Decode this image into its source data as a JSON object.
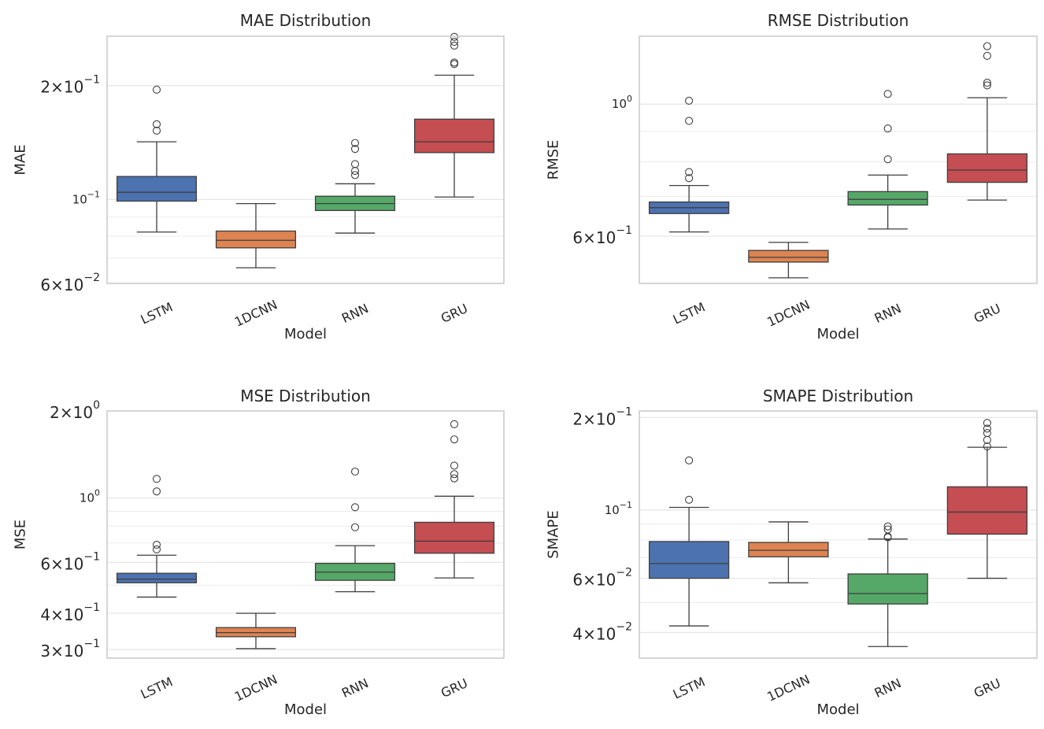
{
  "chart_data": [
    {
      "type": "boxplot",
      "title": "MAE Distribution",
      "xlabel": "Model",
      "ylabel": "MAE",
      "yscale": "log",
      "ylim": [
        0.06,
        0.27
      ],
      "major_ticks": [
        {
          "value": 0.1,
          "base": "10",
          "exp": "−1"
        }
      ],
      "minor_ticks": [
        {
          "value": 0.06,
          "coef": "6",
          "exp": "−2"
        },
        {
          "value": 0.2,
          "coef": "2",
          "exp": "−1"
        }
      ],
      "minor_grid": [
        0.07,
        0.08,
        0.09
      ],
      "categories": [
        "LSTM",
        "1DCNN",
        "RNN",
        "GRU"
      ],
      "boxes": [
        {
          "name": "LSTM",
          "color": "#4c72b0",
          "whislo": 0.082,
          "q1": 0.099,
          "median": 0.1045,
          "q3": 0.115,
          "whishi": 0.142,
          "fliers": [
            0.152,
            0.158,
            0.195
          ]
        },
        {
          "name": "1DCNN",
          "color": "#dd8452",
          "whislo": 0.066,
          "q1": 0.0745,
          "median": 0.078,
          "q3": 0.0825,
          "whishi": 0.0975
        },
        {
          "name": "RNN",
          "color": "#55a868",
          "whislo": 0.0815,
          "q1": 0.0935,
          "median": 0.0975,
          "q3": 0.102,
          "whishi": 0.11,
          "fliers": [
            0.116,
            0.119,
            0.124,
            0.136,
            0.141
          ]
        },
        {
          "name": "GRU",
          "color": "#c44e52",
          "whislo": 0.1015,
          "q1": 0.133,
          "median": 0.142,
          "q3": 0.163,
          "whishi": 0.213,
          "fliers": [
            0.228,
            0.23,
            0.255,
            0.261,
            0.269
          ]
        }
      ]
    },
    {
      "type": "boxplot",
      "title": "RMSE Distribution",
      "xlabel": "Model",
      "ylabel": "RMSE",
      "yscale": "log",
      "ylim": [
        0.5,
        1.3
      ],
      "major_ticks": [
        {
          "value": 1.0,
          "base": "10",
          "exp": "0"
        }
      ],
      "minor_ticks": [
        {
          "value": 0.6,
          "coef": "6",
          "exp": "−1"
        }
      ],
      "minor_grid": [
        0.7,
        0.8,
        0.9
      ],
      "categories": [
        "LSTM",
        "1DCNN",
        "RNN",
        "GRU"
      ],
      "boxes": [
        {
          "name": "LSTM",
          "color": "#4c72b0",
          "whislo": 0.61,
          "q1": 0.655,
          "median": 0.67,
          "q3": 0.685,
          "whishi": 0.73,
          "fliers": [
            0.751,
            0.769,
            0.937,
            1.013
          ]
        },
        {
          "name": "1DCNN",
          "color": "#dd8452",
          "whislo": 0.511,
          "q1": 0.543,
          "median": 0.553,
          "q3": 0.568,
          "whishi": 0.586
        },
        {
          "name": "RNN",
          "color": "#55a868",
          "whislo": 0.617,
          "q1": 0.677,
          "median": 0.692,
          "q3": 0.713,
          "whishi": 0.76,
          "fliers": [
            0.808,
            0.91,
            1.04
          ]
        },
        {
          "name": "GRU",
          "color": "#c44e52",
          "whislo": 0.69,
          "q1": 0.739,
          "median": 0.775,
          "q3": 0.825,
          "whishi": 1.025,
          "fliers": [
            1.075,
            1.086,
            1.205,
            1.251
          ]
        }
      ]
    },
    {
      "type": "boxplot",
      "title": "MSE Distribution",
      "xlabel": "Model",
      "ylabel": "MSE",
      "yscale": "log",
      "ylim": [
        0.28,
        2.0
      ],
      "major_ticks": [
        {
          "value": 1.0,
          "base": "10",
          "exp": "0"
        }
      ],
      "minor_ticks": [
        {
          "value": 0.3,
          "coef": "3",
          "exp": "−1"
        },
        {
          "value": 0.4,
          "coef": "4",
          "exp": "−1"
        },
        {
          "value": 0.6,
          "coef": "6",
          "exp": "−1"
        },
        {
          "value": 2.0,
          "coef": "2",
          "exp": "0"
        }
      ],
      "minor_grid": [
        0.5,
        0.7,
        0.8,
        0.9
      ],
      "categories": [
        "LSTM",
        "1DCNN",
        "RNN",
        "GRU"
      ],
      "boxes": [
        {
          "name": "LSTM",
          "color": "#4c72b0",
          "whislo": 0.455,
          "q1": 0.51,
          "median": 0.525,
          "q3": 0.55,
          "whishi": 0.635,
          "fliers": [
            0.665,
            0.69,
            1.055,
            1.165
          ]
        },
        {
          "name": "1DCNN",
          "color": "#dd8452",
          "whislo": 0.302,
          "q1": 0.332,
          "median": 0.343,
          "q3": 0.357,
          "whishi": 0.4
        },
        {
          "name": "RNN",
          "color": "#55a868",
          "whislo": 0.475,
          "q1": 0.52,
          "median": 0.555,
          "q3": 0.595,
          "whishi": 0.685,
          "fliers": [
            0.793,
            0.93,
            1.235
          ]
        },
        {
          "name": "GRU",
          "color": "#c44e52",
          "whislo": 0.53,
          "q1": 0.645,
          "median": 0.71,
          "q3": 0.825,
          "whishi": 1.015,
          "fliers": [
            1.17,
            1.21,
            1.295,
            1.595,
            1.8
          ]
        }
      ]
    },
    {
      "type": "boxplot",
      "title": "SMAPE Distribution",
      "xlabel": "Model",
      "ylabel": "SMAPE",
      "yscale": "log",
      "ylim": [
        0.033,
        0.21
      ],
      "major_ticks": [
        {
          "value": 0.1,
          "base": "10",
          "exp": "−1"
        }
      ],
      "minor_ticks": [
        {
          "value": 0.04,
          "coef": "4",
          "exp": "−2"
        },
        {
          "value": 0.06,
          "coef": "6",
          "exp": "−2"
        },
        {
          "value": 0.2,
          "coef": "2",
          "exp": "−1"
        }
      ],
      "minor_grid": [
        0.05,
        0.07,
        0.08,
        0.09
      ],
      "categories": [
        "LSTM",
        "1DCNN",
        "RNN",
        "GRU"
      ],
      "boxes": [
        {
          "name": "LSTM",
          "color": "#4c72b0",
          "whislo": 0.042,
          "q1": 0.06,
          "median": 0.067,
          "q3": 0.079,
          "whishi": 0.102,
          "fliers": [
            0.108,
            0.145
          ]
        },
        {
          "name": "1DCNN",
          "color": "#dd8452",
          "whislo": 0.058,
          "q1": 0.0705,
          "median": 0.074,
          "q3": 0.0785,
          "whishi": 0.0915
        },
        {
          "name": "RNN",
          "color": "#55a868",
          "whislo": 0.036,
          "q1": 0.0495,
          "median": 0.0535,
          "q3": 0.062,
          "whishi": 0.0805,
          "fliers": [
            0.0815,
            0.082,
            0.0865,
            0.0885
          ]
        },
        {
          "name": "GRU",
          "color": "#c44e52",
          "whislo": 0.06,
          "q1": 0.0835,
          "median": 0.0985,
          "q3": 0.119,
          "whishi": 0.16,
          "fliers": [
            0.161,
            0.169,
            0.178,
            0.184,
            0.192
          ]
        }
      ]
    }
  ]
}
